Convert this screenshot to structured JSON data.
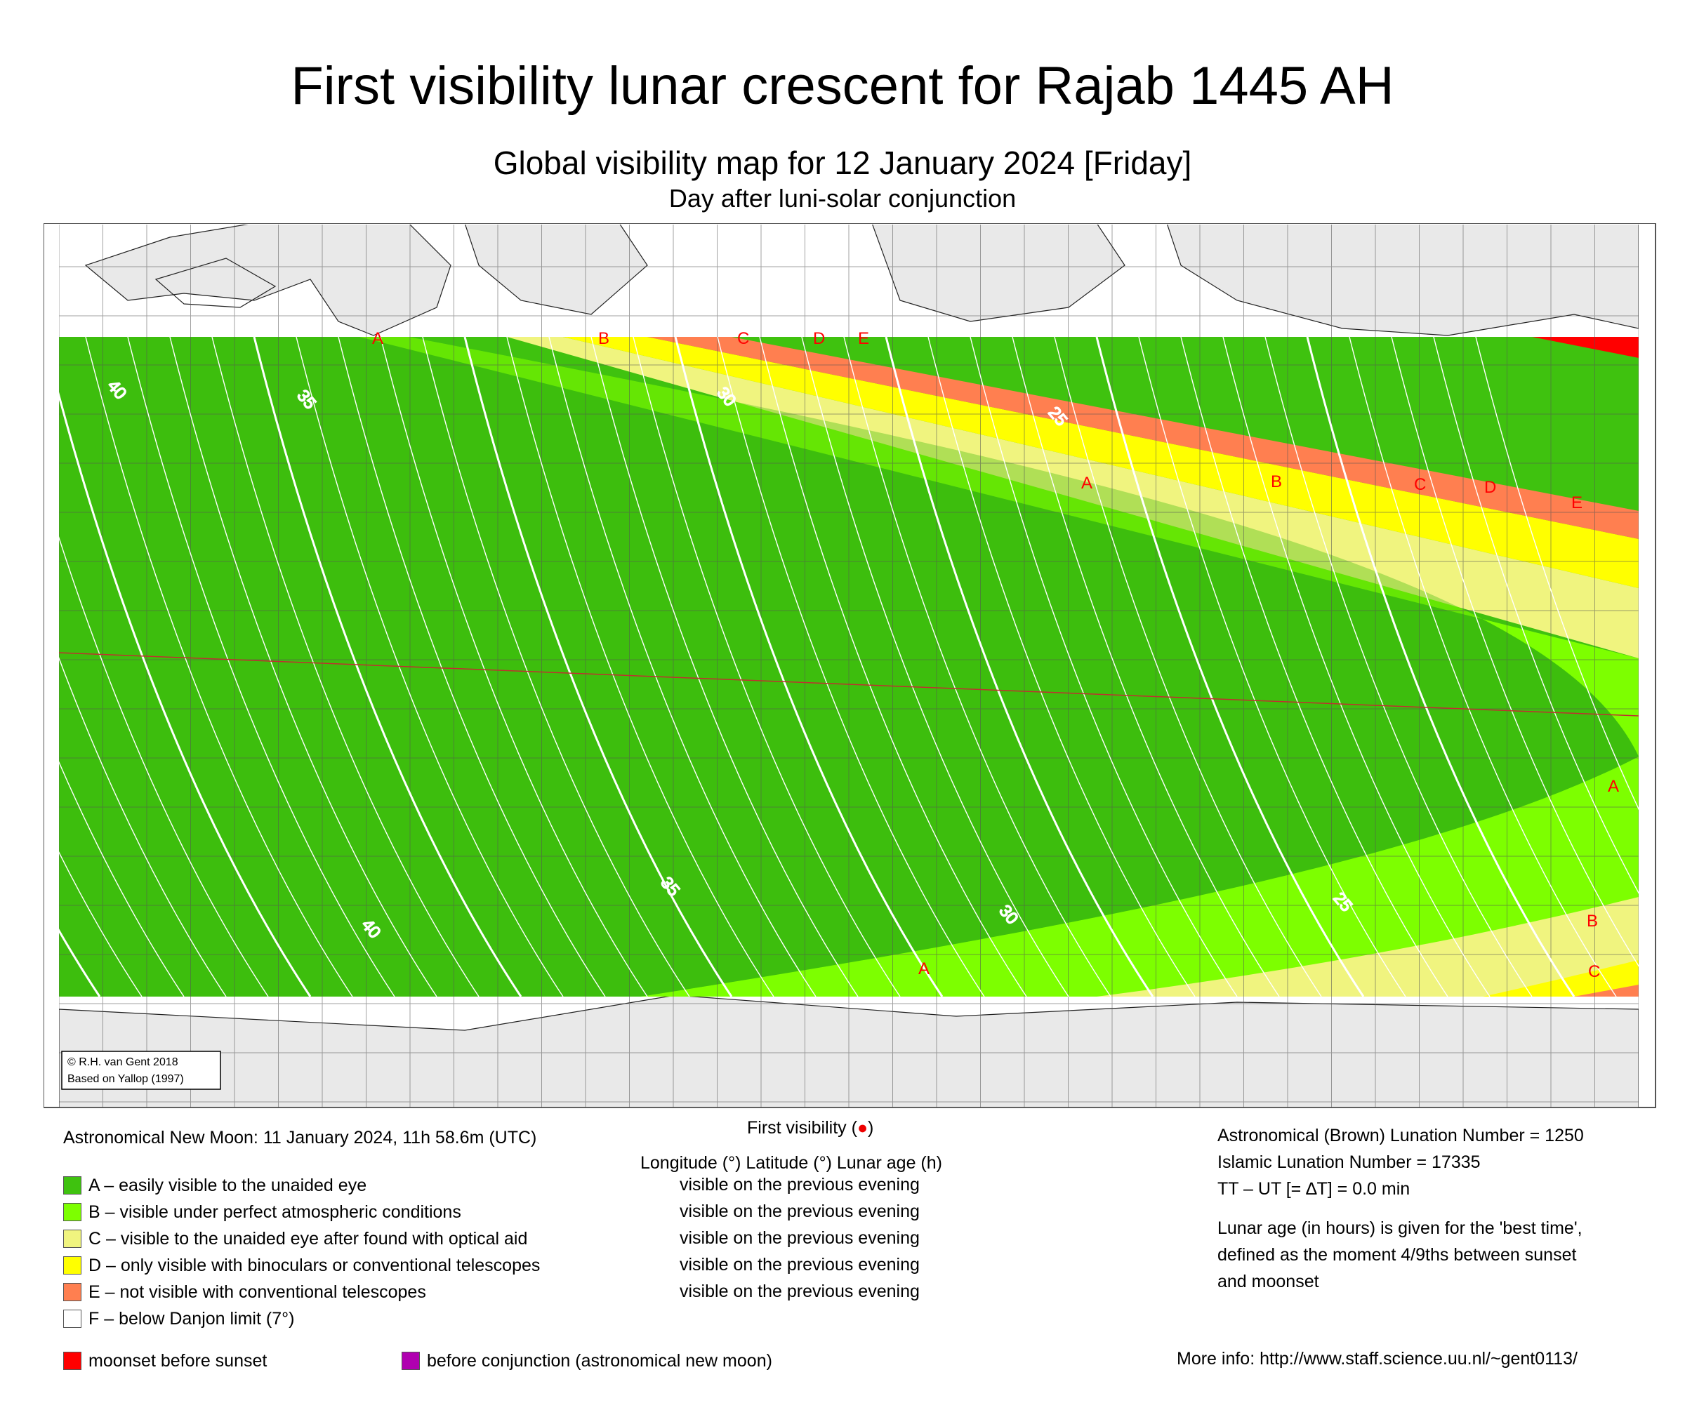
{
  "header": {
    "title": "First visibility lunar crescent for Rajab 1445 AH",
    "subtitle": "Global visibility map for 12 January 2024 [Friday]",
    "subsubtitle": "Day after luni-solar conjunction"
  },
  "colors": {
    "A": "#3fc20f",
    "B": "#7dff00",
    "C": "#f0f47f",
    "D": "#ffff00",
    "E": "#ff7f50",
    "F": "#ffffff",
    "moonset": "#ff0000",
    "before_conjunction": "#b000b0",
    "zone_labels": "#ff0000",
    "land": "#eeeeee",
    "contours": "#ffffff"
  },
  "map": {
    "projection": "equirectangular",
    "visibility_labels": [
      "A",
      "B",
      "C",
      "D",
      "E"
    ],
    "contour_labels": [
      "40",
      "35",
      "30",
      "25"
    ],
    "copyright": [
      "© R.H. van Gent 2018",
      "Based on Yallop (1997)"
    ]
  },
  "info": {
    "new_moon": "Astronomical New Moon: 11 January 2024, 11h 58.6m (UTC)",
    "first_visibility": "First visibility (",
    "first_visibility_end": ")",
    "columns": "Longitude (°)   Latitude (°)   Lunar age (h)",
    "brown_lunation": "Astronomical (Brown) Lunation Number = 1250",
    "islamic_lunation": "Islamic Lunation Number = 17335",
    "delta_t": "TT – UT [= ∆T] = 0.0 min",
    "lunar_age_note_1": "Lunar age (in hours) is given for the 'best time',",
    "lunar_age_note_2": "defined as the moment 4/9ths between sunset",
    "lunar_age_note_3": "and moonset",
    "more_info": "More info: http://www.staff.science.uu.nl/~gent0113/"
  },
  "legend": [
    {
      "label": "A – easily visible to the unaided eye",
      "visibility": "visible on the previous evening"
    },
    {
      "label": "B – visible under perfect atmospheric conditions",
      "visibility": "visible on the previous evening"
    },
    {
      "label": "C – visible to the unaided eye after found with optical aid",
      "visibility": "visible on the previous evening"
    },
    {
      "label": "D – only visible with binoculars or conventional telescopes",
      "visibility": "visible on the previous evening"
    },
    {
      "label": "E – not visible with conventional telescopes",
      "visibility": "visible on the previous evening"
    },
    {
      "label": "F – below Danjon limit (7°)",
      "visibility": ""
    }
  ],
  "legend_extra": {
    "moonset": "moonset before sunset",
    "before_conjunction": "before conjunction (astronomical new moon)"
  }
}
